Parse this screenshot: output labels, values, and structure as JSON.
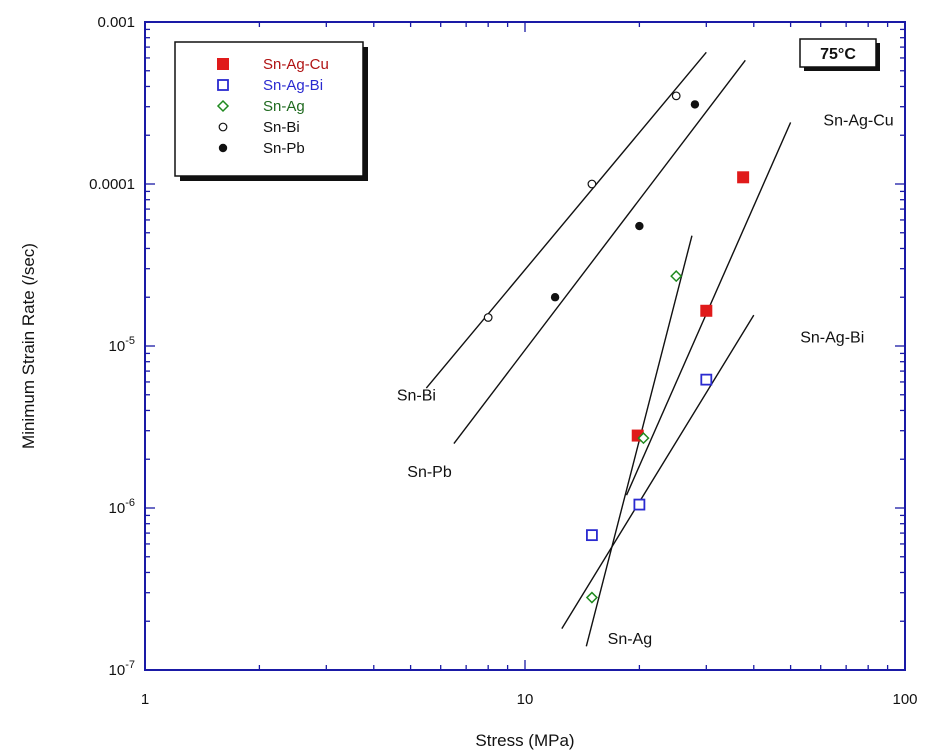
{
  "chart_data": {
    "type": "scatter",
    "xlabel": "Stress (MPa)",
    "ylabel": "Minimum Strain Rate (/sec)",
    "xscale": "log",
    "yscale": "log",
    "xlim": [
      1,
      100
    ],
    "ylim": [
      1e-07,
      0.001
    ],
    "x_ticks": [
      {
        "value": 1,
        "label": "1"
      },
      {
        "value": 10,
        "label": "10"
      },
      {
        "value": 100,
        "label": "100"
      }
    ],
    "y_ticks": [
      {
        "value": 1e-07,
        "base": "10",
        "exp": "-7"
      },
      {
        "value": 1e-06,
        "base": "10",
        "exp": "-6"
      },
      {
        "value": 1e-05,
        "base": "10",
        "exp": "-5"
      },
      {
        "value": 0.0001,
        "label": "0.0001"
      },
      {
        "value": 0.001,
        "label": "0.001"
      }
    ],
    "grid": false,
    "legend_position": "top-left",
    "badge": "75°C",
    "series": [
      {
        "name": "Sn-Ag-Cu",
        "marker": "filled-square",
        "color": "#e01a1a",
        "label_color": "#b01212",
        "points": [
          [
            19.8,
            2.8e-06
          ],
          [
            30,
            1.65e-05
          ],
          [
            37.5,
            0.00011
          ]
        ],
        "fit_line": [
          [
            18.5,
            1.2e-06
          ],
          [
            50,
            0.00024
          ]
        ],
        "line_label": "Sn-Ag-Cu",
        "line_label_at": [
          61,
          0.00023
        ]
      },
      {
        "name": "Sn-Ag-Bi",
        "marker": "open-square",
        "color": "#2a2ad0",
        "label_color": "#2a2ad0",
        "points": [
          [
            15,
            6.8e-07
          ],
          [
            20,
            1.05e-06
          ],
          [
            30,
            6.2e-06
          ]
        ],
        "fit_line": [
          [
            12.5,
            1.8e-07
          ],
          [
            40,
            1.55e-05
          ]
        ],
        "line_label": "Sn-Ag-Bi",
        "line_label_at": [
          53,
          1.05e-05
        ]
      },
      {
        "name": "Sn-Ag",
        "marker": "open-diamond",
        "color": "#1f8a1f",
        "label_color": "#1f6a1f",
        "points": [
          [
            15,
            2.8e-07
          ],
          [
            20.5,
            2.7e-06
          ],
          [
            25,
            2.7e-05
          ]
        ],
        "fit_line": [
          [
            14.5,
            1.4e-07
          ],
          [
            27.5,
            4.8e-05
          ]
        ],
        "line_label": "Sn-Ag",
        "line_label_at": [
          16.5,
          1.45e-07
        ]
      },
      {
        "name": "Sn-Bi",
        "marker": "open-circle",
        "color": "#111111",
        "label_color": "#111111",
        "points": [
          [
            8,
            1.5e-05
          ],
          [
            15,
            0.0001
          ],
          [
            25,
            0.00035
          ]
        ],
        "fit_line": [
          [
            5.5,
            5.5e-06
          ],
          [
            30,
            0.00065
          ]
        ],
        "line_label": "Sn-Bi",
        "line_label_at": [
          4.6,
          4.6e-06
        ]
      },
      {
        "name": "Sn-Pb",
        "marker": "filled-circle",
        "color": "#111111",
        "label_color": "#111111",
        "points": [
          [
            12,
            2e-05
          ],
          [
            20,
            5.5e-05
          ],
          [
            28,
            0.00031
          ]
        ],
        "fit_line": [
          [
            6.5,
            2.5e-06
          ],
          [
            38,
            0.00058
          ]
        ],
        "line_label": "Sn-Pb",
        "line_label_at": [
          4.9,
          1.55e-06
        ]
      }
    ]
  }
}
